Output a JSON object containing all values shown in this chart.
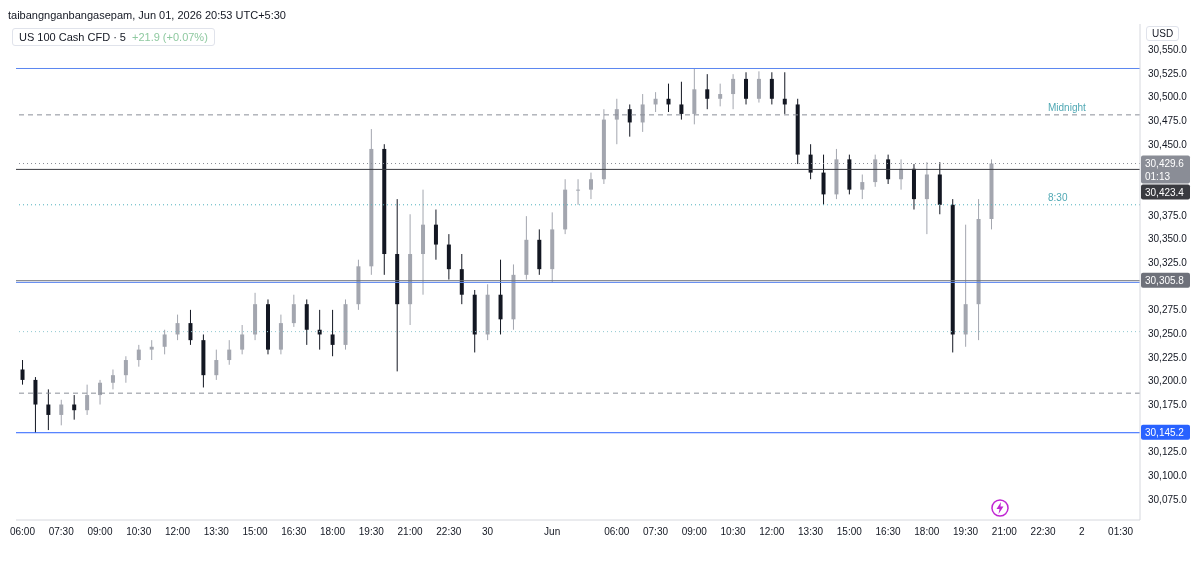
{
  "chart_data": {
    "type": "candlestick",
    "title": "US 100 Cash CFD · 5",
    "subtitle": "+21.9 (+0.07%)",
    "ylabel": "USD",
    "annotations": [
      "taibangnganbangasepam, Jun 01, 2026 20:53 UTC+5:30",
      {
        "text": "Midnight",
        "y": 30481
      },
      {
        "text": "8:30",
        "y": 30386
      }
    ],
    "categories": [
      "06:00",
      null,
      null,
      "07:30",
      null,
      null,
      "09:00",
      null,
      null,
      "10:30",
      null,
      null,
      "12:00",
      null,
      null,
      "13:30",
      null,
      null,
      "15:00",
      null,
      null,
      "16:30",
      null,
      null,
      "18:00",
      null,
      null,
      "19:30",
      null,
      null,
      "21:00",
      null,
      null,
      "22:30",
      null,
      null,
      "30",
      null,
      null,
      null,
      null,
      "Jun",
      null,
      null,
      null,
      null,
      "06:00",
      null,
      null,
      "07:30",
      null,
      null,
      "09:00",
      null,
      null,
      "10:30",
      null,
      null,
      "12:00",
      null,
      null,
      "13:30",
      null,
      null,
      "15:00",
      null,
      null,
      "16:30",
      null,
      null,
      "18:00",
      null,
      null,
      "19:30",
      null,
      null,
      "21:00",
      null,
      null,
      "22:30",
      null,
      null,
      "2",
      null,
      null,
      "01:30",
      null
    ],
    "ohlc": [
      [
        30212,
        30222,
        30196,
        30201
      ],
      [
        30201,
        30204,
        30145.2,
        30175
      ],
      [
        30175,
        30191,
        30148,
        30164
      ],
      [
        30164,
        30180,
        30153,
        30175
      ],
      [
        30175,
        30185,
        30159,
        30169
      ],
      [
        30169,
        30196,
        30164,
        30185
      ],
      [
        30185,
        30201,
        30175,
        30198
      ],
      [
        30198,
        30212,
        30191,
        30206
      ],
      [
        30206,
        30226,
        30198,
        30222
      ],
      [
        30222,
        30238,
        30215,
        30233
      ],
      [
        30233,
        30243,
        30222,
        30236
      ],
      [
        30236,
        30254,
        30228,
        30249
      ],
      [
        30249,
        30270,
        30243,
        30261
      ],
      [
        30261,
        30275,
        30238,
        30243
      ],
      [
        30243,
        30249,
        30193,
        30206
      ],
      [
        30206,
        30233,
        30201,
        30222
      ],
      [
        30222,
        30243,
        30217,
        30233
      ],
      [
        30233,
        30259,
        30228,
        30249
      ],
      [
        30249,
        30293,
        30243,
        30281
      ],
      [
        30281,
        30286,
        30228,
        30233
      ],
      [
        30233,
        30270,
        30228,
        30261
      ],
      [
        30261,
        30291,
        30257,
        30281
      ],
      [
        30281,
        30286,
        30238,
        30254
      ],
      [
        30254,
        30275,
        30233,
        30249
      ],
      [
        30249,
        30275,
        30226,
        30238
      ],
      [
        30238,
        30286,
        30233,
        30281
      ],
      [
        30281,
        30328,
        30275,
        30321
      ],
      [
        30321,
        30466,
        30312,
        30445
      ],
      [
        30445,
        30450,
        30312,
        30334
      ],
      [
        30334,
        30392,
        30210,
        30281
      ],
      [
        30281,
        30376,
        30259,
        30334
      ],
      [
        30334,
        30402,
        30291,
        30365
      ],
      [
        30365,
        30381,
        30328,
        30344
      ],
      [
        30344,
        30355,
        30307,
        30318
      ],
      [
        30318,
        30334,
        30281,
        30291
      ],
      [
        30291,
        30296,
        30230,
        30249
      ],
      [
        30249,
        30302,
        30243,
        30291
      ],
      [
        30291,
        30328,
        30249,
        30265
      ],
      [
        30265,
        30323,
        30254,
        30312
      ],
      [
        30312,
        30374,
        30307,
        30349
      ],
      [
        30349,
        30360,
        30312,
        30318
      ],
      [
        30318,
        30378,
        30304,
        30360
      ],
      [
        30360,
        30413,
        30355,
        30402
      ],
      [
        30402,
        30413,
        30386,
        30402
      ],
      [
        30402,
        30420,
        30392,
        30413
      ],
      [
        30413,
        30487,
        30408,
        30476
      ],
      [
        30476,
        30498,
        30450,
        30487
      ],
      [
        30487,
        30492,
        30458,
        30473
      ],
      [
        30473,
        30503,
        30463,
        30492
      ],
      [
        30492,
        30505,
        30484,
        30498
      ],
      [
        30498,
        30514,
        30484,
        30492
      ],
      [
        30492,
        30516,
        30476,
        30482
      ],
      [
        30482,
        30530,
        30471,
        30508
      ],
      [
        30508,
        30524,
        30487,
        30498
      ],
      [
        30498,
        30514,
        30490,
        30503
      ],
      [
        30503,
        30524,
        30487,
        30519
      ],
      [
        30519,
        30526,
        30492,
        30498
      ],
      [
        30498,
        30527,
        30494,
        30519
      ],
      [
        30519,
        30526,
        30492,
        30498
      ],
      [
        30498,
        30526,
        30482,
        30492
      ],
      [
        30492,
        30498,
        30429,
        30439
      ],
      [
        30439,
        30450,
        30413,
        30420
      ],
      [
        30420,
        30439,
        30386,
        30397
      ],
      [
        30397,
        30445,
        30392,
        30434
      ],
      [
        30434,
        30439,
        30397,
        30402
      ],
      [
        30402,
        30418,
        30392,
        30410
      ],
      [
        30410,
        30439,
        30405,
        30434
      ],
      [
        30434,
        30439,
        30408,
        30413
      ],
      [
        30413,
        30434,
        30402,
        30424
      ],
      [
        30424,
        30429,
        30381,
        30392
      ],
      [
        30392,
        30431,
        30355,
        30418
      ],
      [
        30418,
        30431,
        30376,
        30386
      ],
      [
        30386,
        30392,
        30230,
        30249
      ],
      [
        30249,
        30365,
        30236,
        30281
      ],
      [
        30281,
        30392,
        30243,
        30371
      ],
      [
        30371,
        30434,
        30360,
        30429.6
      ],
      null,
      null,
      null,
      null,
      null,
      null,
      null,
      null,
      null,
      null,
      null
    ],
    "ylim": [
      30053,
      30577
    ],
    "yticks": [
      {
        "value": 30075,
        "label": "30,075.0"
      },
      {
        "value": 30100,
        "label": "30,100.0"
      },
      {
        "value": 30125,
        "label": "30,125.0"
      },
      {
        "value": 30175,
        "label": "30,175.0"
      },
      {
        "value": 30200,
        "label": "30,200.0"
      },
      {
        "value": 30225,
        "label": "30,225.0"
      },
      {
        "value": 30250,
        "label": "30,250.0"
      },
      {
        "value": 30275,
        "label": "30,275.0"
      },
      {
        "value": 30325,
        "label": "30,325.0"
      },
      {
        "value": 30350,
        "label": "30,350.0"
      },
      {
        "value": 30375,
        "label": "30,375.0"
      },
      {
        "value": 30450,
        "label": "30,450.0"
      },
      {
        "value": 30475,
        "label": "30,475.0"
      },
      {
        "value": 30500,
        "label": "30,500.0"
      },
      {
        "value": 30525,
        "label": "30,525.0"
      },
      {
        "value": 30550,
        "label": "30,550.0"
      }
    ],
    "ref_lines": [
      {
        "axis": "y",
        "value": 30530,
        "color": "#5b86f0",
        "line_style": "solid"
      },
      {
        "axis": "y",
        "value": 30145.2,
        "label": "30,145.2",
        "color": "#2962ff",
        "line_style": "solid"
      },
      {
        "axis": "y",
        "value": 30304,
        "color": "#5b86f0",
        "line_style": "solid"
      },
      {
        "axis": "y",
        "value": 30481,
        "color": "#8a8f98",
        "line_style": "dashed"
      },
      {
        "axis": "y",
        "value": 30386,
        "color": "#4fb0bd",
        "line_style": "dotted"
      },
      {
        "axis": "y",
        "value": 30252,
        "color": "#8fc9d0",
        "line_style": "dotted"
      },
      {
        "axis": "y",
        "value": 30187,
        "color": "#8a8f98",
        "line_style": "dashed"
      },
      {
        "axis": "y",
        "value": 30429.6,
        "label": "30,429.6\n01:13",
        "color": "#8a8d96",
        "line_style": "dotted"
      },
      {
        "axis": "y",
        "value": 30423.4,
        "label": "30,423.4",
        "color": "#3a3b40",
        "line_style": "solid"
      },
      {
        "axis": "y",
        "value": 30305.8,
        "label": "30,305.8",
        "color": "#6e717a",
        "line_style": "solid"
      }
    ]
  }
}
